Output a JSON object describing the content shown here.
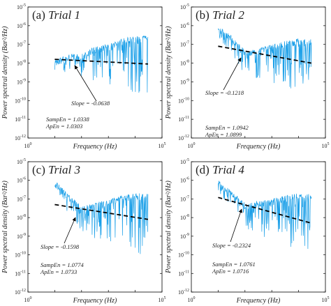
{
  "figure": {
    "y_axis_label": "Power spectral density (Bar²/Hz)",
    "x_axis_label": "Frequency (Hz)",
    "signal_color": "#1a9fe8",
    "fit_color": "#000000"
  },
  "chart_data": [
    {
      "type": "line",
      "panel_label": "(a)",
      "title": "Trial 1",
      "xlabel": "Frequency (Hz)",
      "ylabel": "Power spectral density (Bar²/Hz)",
      "xscale": "log",
      "yscale": "log",
      "xlim": [
        1,
        100000
      ],
      "ylim": [
        1e-12,
        1e-05
      ],
      "x_ticks": [
        "10^0",
        "10^5"
      ],
      "y_ticks": [
        "10^-12",
        "10^-11",
        "10^-10",
        "10^-9",
        "10^-8",
        "10^-7",
        "10^-6",
        "10^-5"
      ],
      "series": [
        {
          "role": "spectrum",
          "envelope": {
            "x": [
              10,
              30,
              100,
              300,
              1000,
              3000,
              10000,
              30000
            ],
            "y": [
              1.5e-08,
              3e-08,
              3e-08,
              8e-08,
              1e-07,
              2e-07,
              3e-07,
              3e-07
            ]
          }
        },
        {
          "role": "fit",
          "x": [
            10,
            30000
          ],
          "y": [
            1.6e-08,
            9e-09
          ]
        }
      ],
      "slope": "Slope = -0.0638",
      "samp_en": "SampEn = 1.0338",
      "ap_en": "ApEn = 1.0303"
    },
    {
      "type": "line",
      "panel_label": "(b)",
      "title": "Trial 2",
      "xlabel": "Frequency (Hz)",
      "ylabel": "Power spectral density (Bar²/Hz)",
      "xscale": "log",
      "yscale": "log",
      "xlim": [
        1,
        100000
      ],
      "ylim": [
        1e-12,
        1e-05
      ],
      "x_ticks": [
        "10^0",
        "10^5"
      ],
      "y_ticks": [
        "10^-12",
        "10^-11",
        "10^-10",
        "10^-9",
        "10^-8",
        "10^-7",
        "10^-6",
        "10^-5"
      ],
      "series": [
        {
          "role": "spectrum",
          "envelope": {
            "x": [
              10,
              30,
              100,
              300,
              1000,
              3000,
              10000,
              30000
            ],
            "y": [
              1e-06,
              3e-07,
              5e-08,
              6e-08,
              1e-07,
              1.5e-07,
              2e-07,
              2e-07
            ]
          }
        },
        {
          "role": "fit",
          "x": [
            10,
            30000
          ],
          "y": [
            8e-08,
            1e-08
          ]
        }
      ],
      "slope": "Slope = -0.1218",
      "samp_en": "SampEn = 1.0942",
      "ap_en": "ApEn = 1.0899"
    },
    {
      "type": "line",
      "panel_label": "(c)",
      "title": "Trial 3",
      "xlabel": "Frequency (Hz)",
      "ylabel": "Power spectral density (Bar²/Hz)",
      "xscale": "log",
      "yscale": "log",
      "xlim": [
        1,
        100000
      ],
      "ylim": [
        1e-12,
        1e-05
      ],
      "x_ticks": [
        "10^0",
        "10^5"
      ],
      "y_ticks": [
        "10^-12",
        "10^-11",
        "10^-10",
        "10^-9",
        "10^-8",
        "10^-7",
        "10^-6",
        "10^-5"
      ],
      "series": [
        {
          "role": "spectrum",
          "envelope": {
            "x": [
              10,
              30,
              100,
              300,
              1000,
              3000,
              10000,
              30000
            ],
            "y": [
              1e-06,
              2e-07,
              4e-08,
              6e-08,
              1e-07,
              1.5e-07,
              2e-07,
              2e-07
            ]
          }
        },
        {
          "role": "fit",
          "x": [
            10,
            30000
          ],
          "y": [
            5e-08,
            8e-09
          ]
        }
      ],
      "slope": "Slope = -0.1598",
      "samp_en": "SampEn = 1.0774",
      "ap_en": "ApEn = 1.0733"
    },
    {
      "type": "line",
      "panel_label": "(d)",
      "title": "Trial 4",
      "xlabel": "Frequency (Hz)",
      "ylabel": "Power spectral density (Bar²/Hz)",
      "xscale": "log",
      "yscale": "log",
      "xlim": [
        1,
        100000
      ],
      "ylim": [
        1e-12,
        1e-05
      ],
      "x_ticks": [
        "10^0",
        "10^5"
      ],
      "y_ticks": [
        "10^-12",
        "10^-11",
        "10^-10",
        "10^-9",
        "10^-8",
        "10^-7",
        "10^-6",
        "10^-5"
      ],
      "series": [
        {
          "role": "spectrum",
          "envelope": {
            "x": [
              10,
              30,
              100,
              300,
              1000,
              3000,
              10000,
              30000
            ],
            "y": [
              1e-06,
              3e-07,
              6e-08,
              8e-08,
              1e-07,
              1.5e-07,
              2e-07,
              2e-07
            ]
          }
        },
        {
          "role": "fit",
          "x": [
            10,
            30000
          ],
          "y": [
            1.2e-07,
            5e-09
          ]
        }
      ],
      "slope": "Slope = -0.2324",
      "samp_en": "SampEn = 1.0761",
      "ap_en": "ApEn = 1.0716"
    }
  ]
}
